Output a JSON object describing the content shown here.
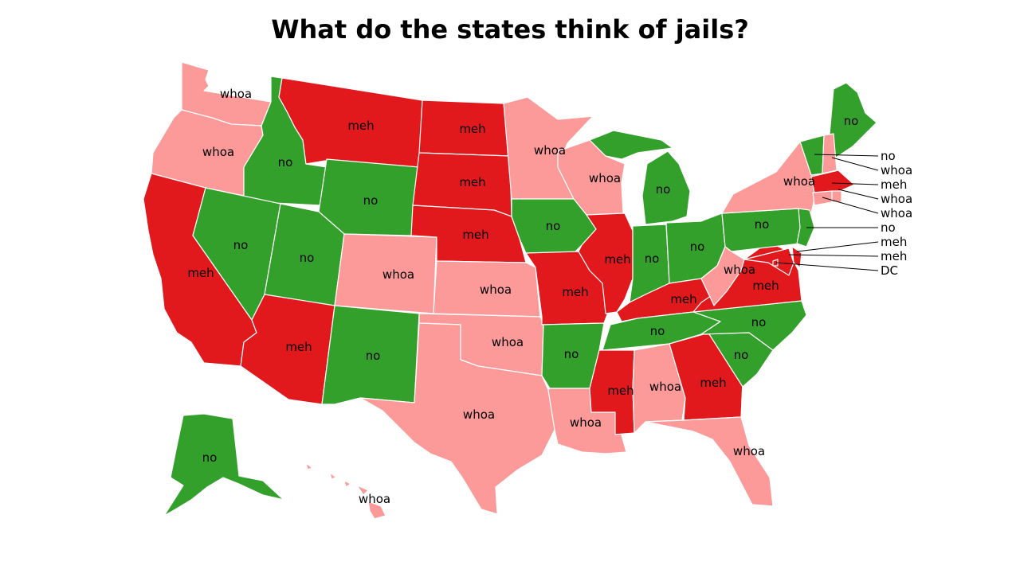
{
  "title": "What do the states think of jails?",
  "colors": {
    "meh": "#e1191d",
    "whoa": "#fb9a99",
    "no": "#33a02c"
  },
  "states": [
    {
      "id": "WA",
      "value": "whoa"
    },
    {
      "id": "OR",
      "value": "whoa"
    },
    {
      "id": "CA",
      "value": "meh"
    },
    {
      "id": "ID",
      "value": "no"
    },
    {
      "id": "NV",
      "value": "no"
    },
    {
      "id": "MT",
      "value": "meh"
    },
    {
      "id": "WY",
      "value": "no"
    },
    {
      "id": "UT",
      "value": "no"
    },
    {
      "id": "AZ",
      "value": "meh"
    },
    {
      "id": "CO",
      "value": "whoa"
    },
    {
      "id": "NM",
      "value": "no"
    },
    {
      "id": "ND",
      "value": "meh"
    },
    {
      "id": "SD",
      "value": "meh"
    },
    {
      "id": "NE",
      "value": "meh"
    },
    {
      "id": "KS",
      "value": "whoa"
    },
    {
      "id": "OK",
      "value": "whoa"
    },
    {
      "id": "TX",
      "value": "whoa"
    },
    {
      "id": "MN",
      "value": "whoa"
    },
    {
      "id": "IA",
      "value": "no"
    },
    {
      "id": "MO",
      "value": "meh"
    },
    {
      "id": "AR",
      "value": "no"
    },
    {
      "id": "LA",
      "value": "whoa"
    },
    {
      "id": "WI",
      "value": "whoa"
    },
    {
      "id": "IL",
      "value": "meh"
    },
    {
      "id": "MI",
      "value": "no"
    },
    {
      "id": "IN",
      "value": "no"
    },
    {
      "id": "OH",
      "value": "no"
    },
    {
      "id": "KY",
      "value": "meh"
    },
    {
      "id": "TN",
      "value": "no"
    },
    {
      "id": "MS",
      "value": "meh"
    },
    {
      "id": "AL",
      "value": "whoa"
    },
    {
      "id": "GA",
      "value": "meh"
    },
    {
      "id": "FL",
      "value": "whoa"
    },
    {
      "id": "SC",
      "value": "no"
    },
    {
      "id": "NC",
      "value": "no"
    },
    {
      "id": "VA",
      "value": "meh"
    },
    {
      "id": "WV",
      "value": "whoa"
    },
    {
      "id": "PA",
      "value": "no"
    },
    {
      "id": "NY",
      "value": "whoa"
    },
    {
      "id": "ME",
      "value": "no"
    },
    {
      "id": "AK",
      "value": "no"
    },
    {
      "id": "HI",
      "value": "whoa"
    },
    {
      "id": "VT",
      "value": "no"
    },
    {
      "id": "NH",
      "value": "whoa"
    },
    {
      "id": "MA",
      "value": "meh"
    },
    {
      "id": "RI",
      "value": "whoa"
    },
    {
      "id": "CT",
      "value": "whoa"
    },
    {
      "id": "NJ",
      "value": "no"
    },
    {
      "id": "DE",
      "value": "meh"
    },
    {
      "id": "MD",
      "value": "meh"
    },
    {
      "id": "DC",
      "value": "DC"
    }
  ]
}
